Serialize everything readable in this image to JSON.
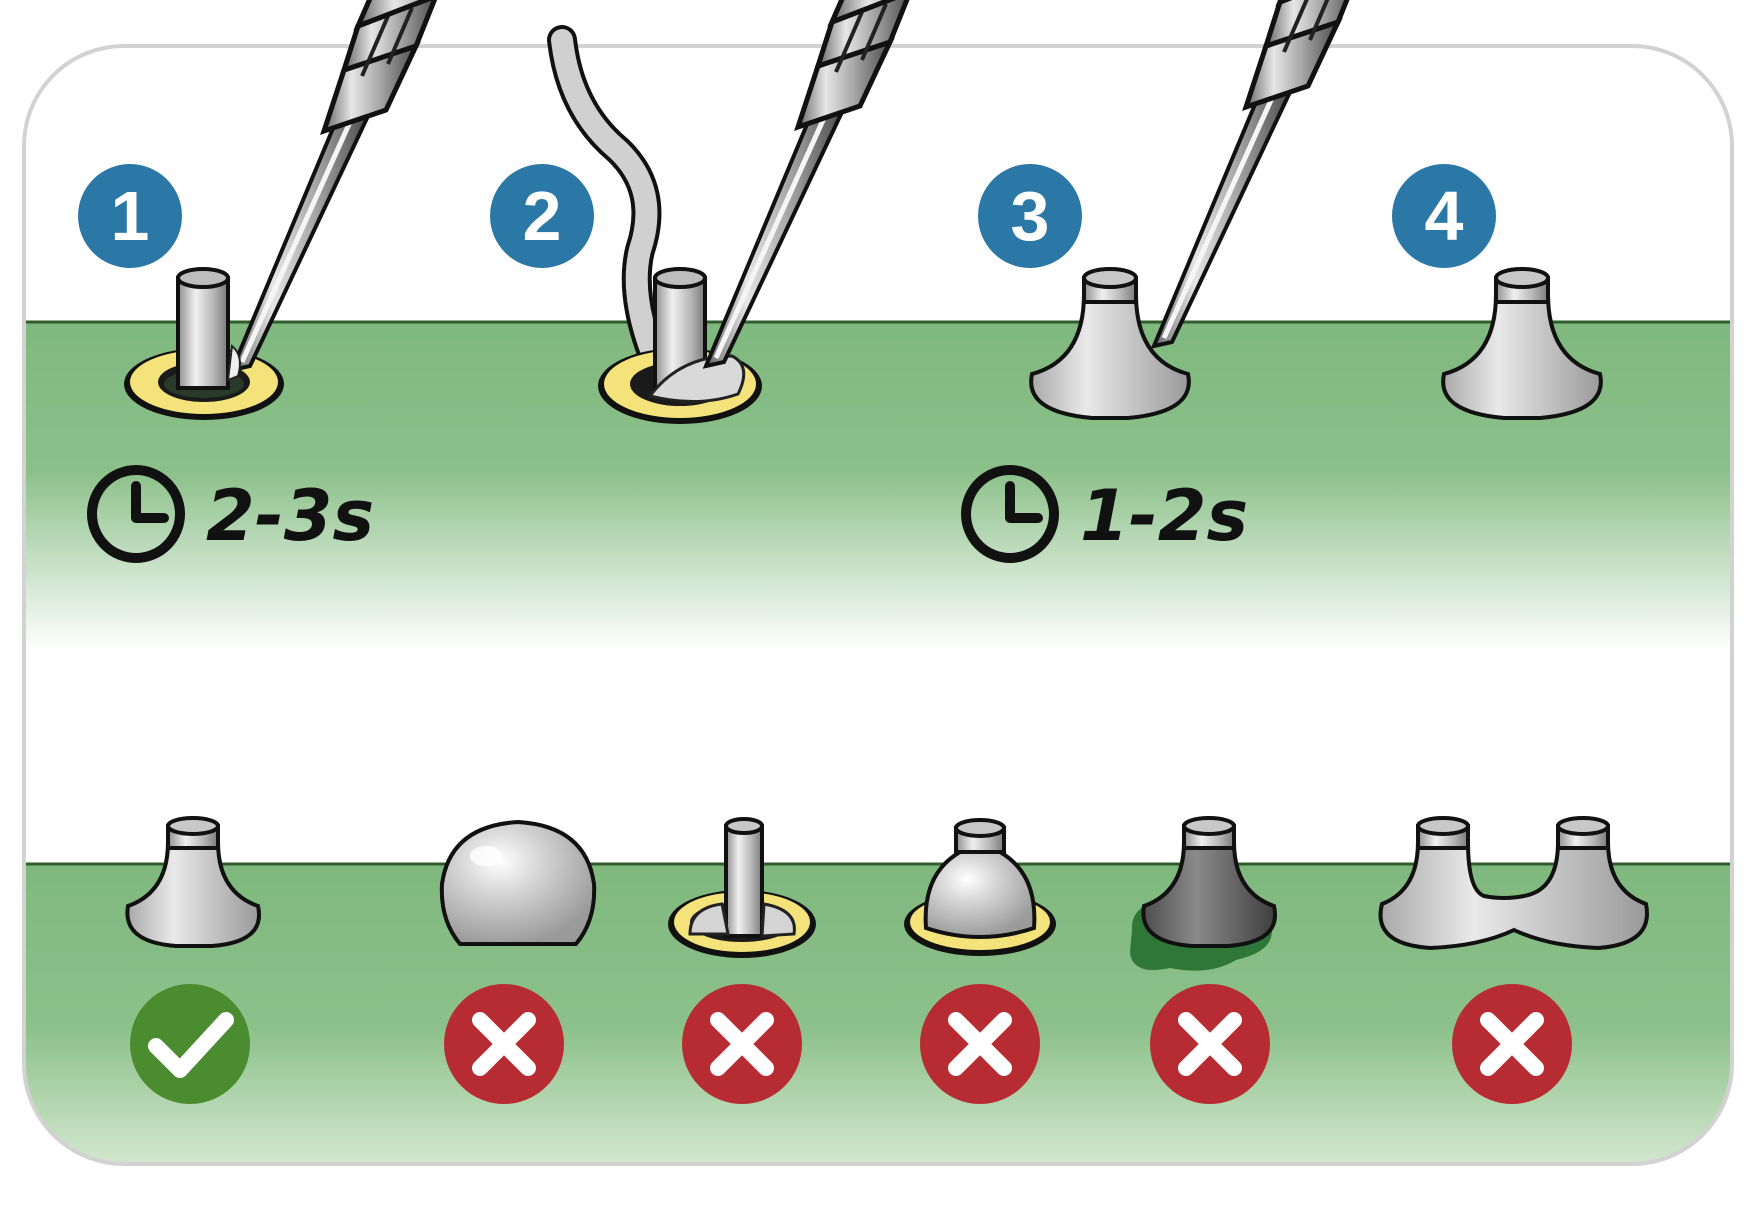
{
  "steps": [
    {
      "number": "1",
      "stage": "heat-pad-and-pin"
    },
    {
      "number": "2",
      "stage": "feed-solder"
    },
    {
      "number": "3",
      "stage": "solder-flows"
    },
    {
      "number": "4",
      "stage": "finished-joint"
    }
  ],
  "timings": [
    {
      "label": "2-3s",
      "icon": "clock-icon"
    },
    {
      "label": "1-2s",
      "icon": "clock-icon"
    }
  ],
  "examples": [
    {
      "joint": "good-cone-joint",
      "verdict": "correct",
      "icon": "check-icon",
      "color": "#4a8c2f"
    },
    {
      "joint": "solder-ball",
      "verdict": "incorrect",
      "icon": "cross-icon",
      "color": "#b72b32"
    },
    {
      "joint": "insufficient-solder",
      "verdict": "incorrect",
      "icon": "cross-icon",
      "color": "#b72b32"
    },
    {
      "joint": "pad-not-wetted",
      "verdict": "incorrect",
      "icon": "cross-icon",
      "color": "#b72b32"
    },
    {
      "joint": "overheated-burnt",
      "verdict": "incorrect",
      "icon": "cross-icon",
      "color": "#b72b32"
    },
    {
      "joint": "solder-bridge",
      "verdict": "incorrect",
      "icon": "cross-icon",
      "color": "#b72b32"
    }
  ],
  "colors": {
    "board_green": "#7fb87e",
    "step_circle": "#2b77a6",
    "pad_yellow": "#f3e37a",
    "solder_silver": "#c9c9c9",
    "ok_green": "#4a8c2f",
    "bad_red": "#b72b32"
  }
}
